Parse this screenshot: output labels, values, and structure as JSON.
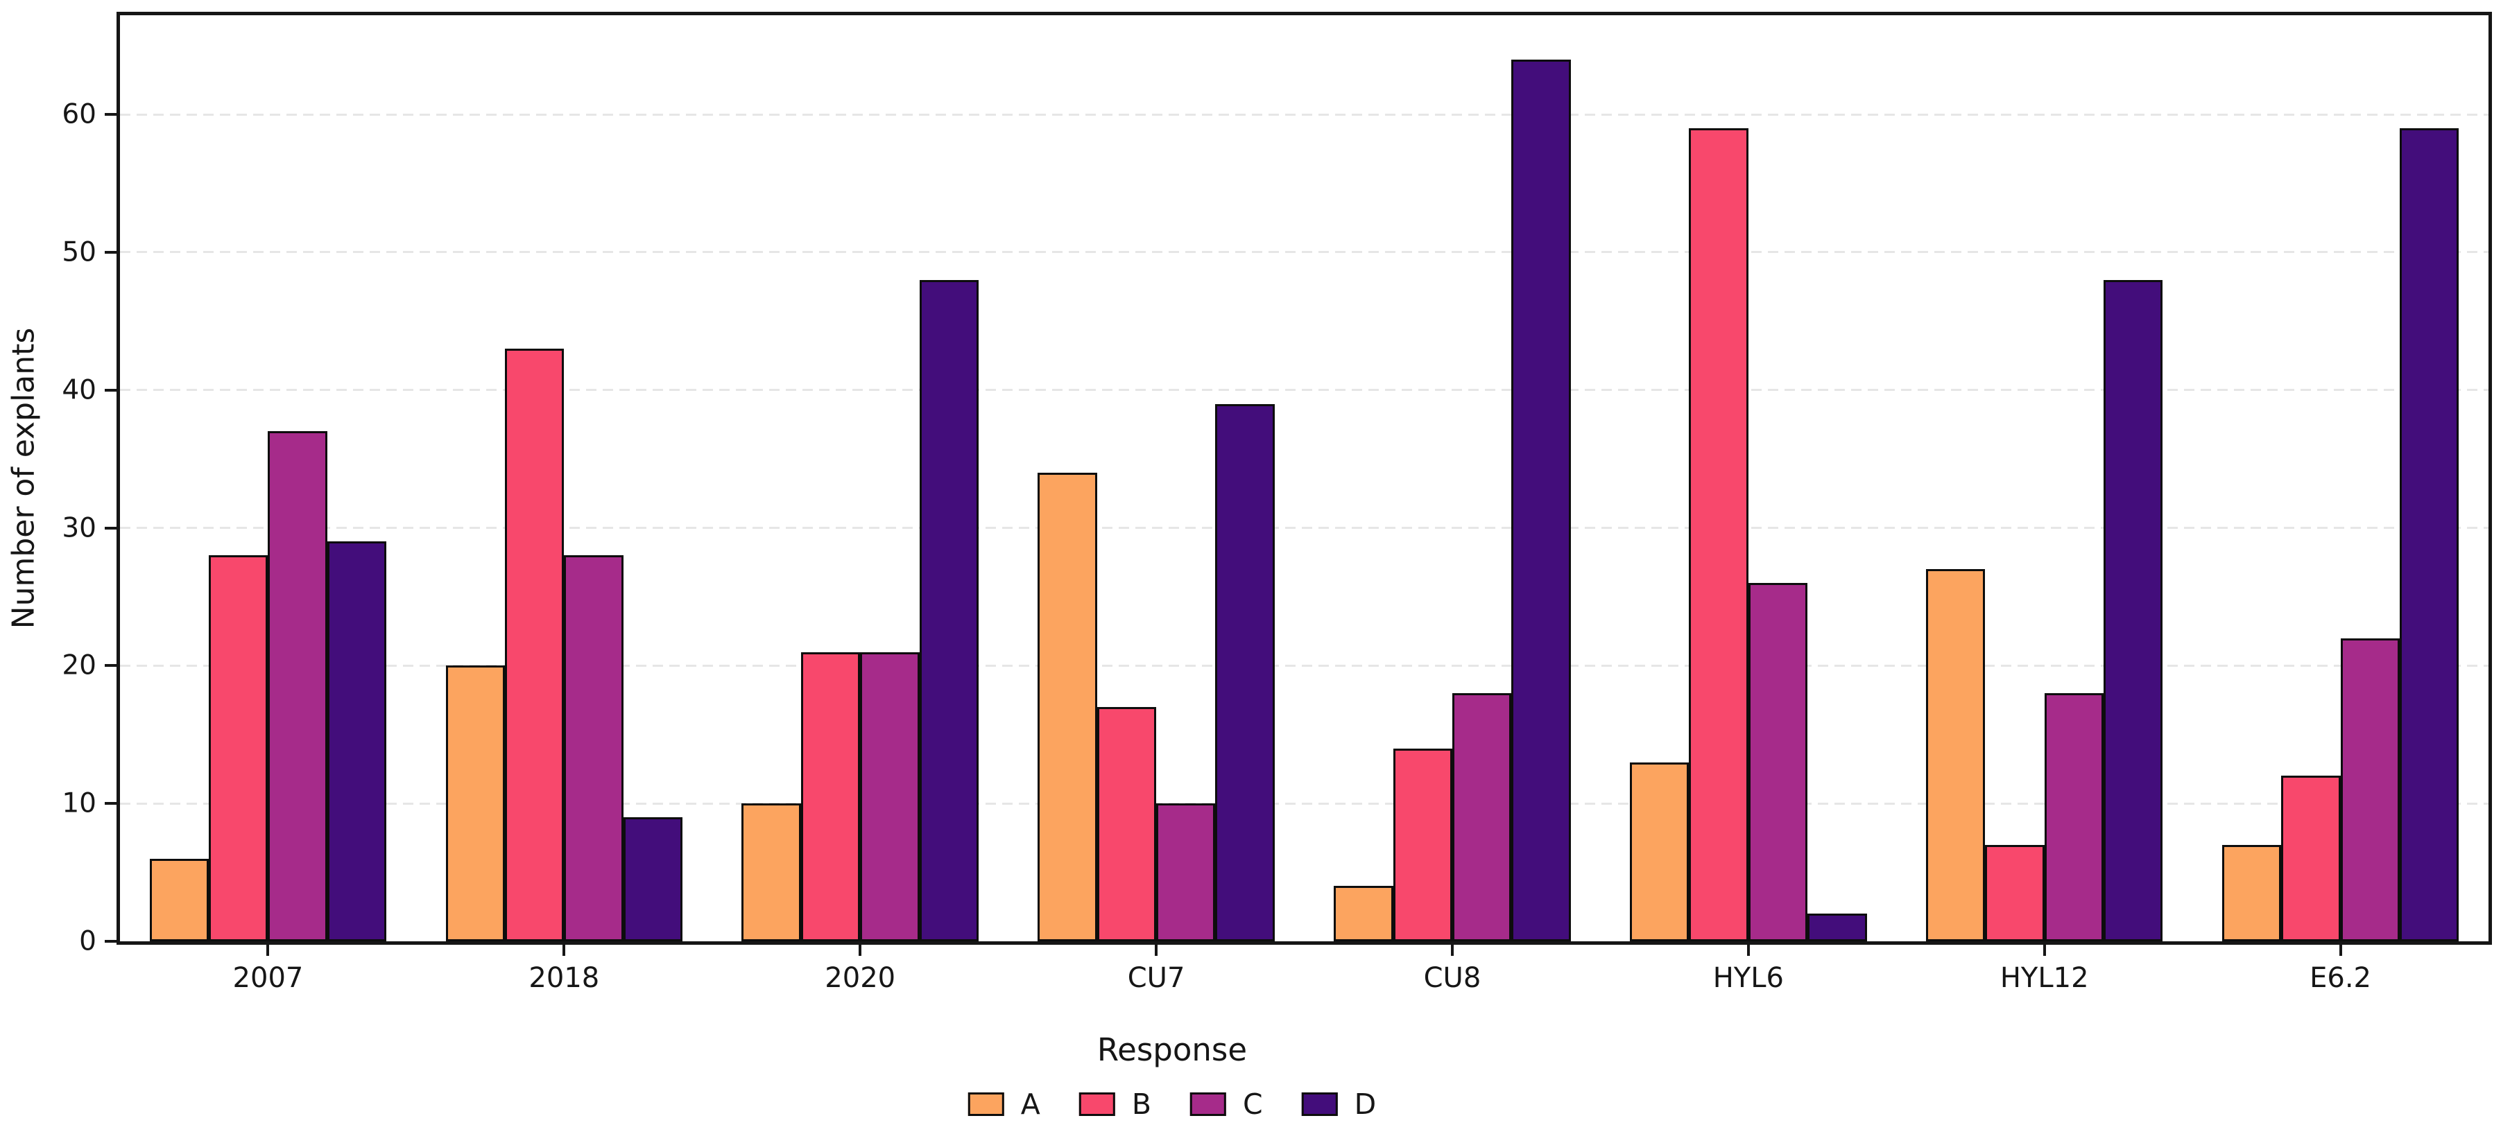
{
  "chart_data": {
    "type": "bar",
    "title": "",
    "categories": [
      "2007",
      "2018",
      "2020",
      "CU7",
      "CU8",
      "HYL6",
      "HYL12",
      "E6.2"
    ],
    "series": [
      {
        "name": "A",
        "color": "#fca45f",
        "values": [
          6,
          20,
          10,
          34,
          4,
          13,
          27,
          7
        ]
      },
      {
        "name": "B",
        "color": "#f8486c",
        "values": [
          28,
          43,
          21,
          17,
          14,
          59,
          7,
          12
        ]
      },
      {
        "name": "C",
        "color": "#a62b8a",
        "values": [
          37,
          28,
          21,
          10,
          18,
          26,
          18,
          22
        ]
      },
      {
        "name": "D",
        "color": "#430d7b",
        "values": [
          29,
          9,
          48,
          39,
          64,
          2,
          48,
          59
        ]
      }
    ],
    "xlabel": "",
    "ylabel": "Number of explants",
    "yticks": [
      0,
      10,
      20,
      30,
      40,
      50,
      60
    ],
    "ylim": [
      0,
      67.2
    ],
    "grid": "horizontal-dashed",
    "gridline_color": "#e6e6e6",
    "bar_edge_color": "#0d0d0d",
    "axis_color": "#161616",
    "background": "#ffffff",
    "legend_title": "Response",
    "legend_position": "bottom-center"
  }
}
